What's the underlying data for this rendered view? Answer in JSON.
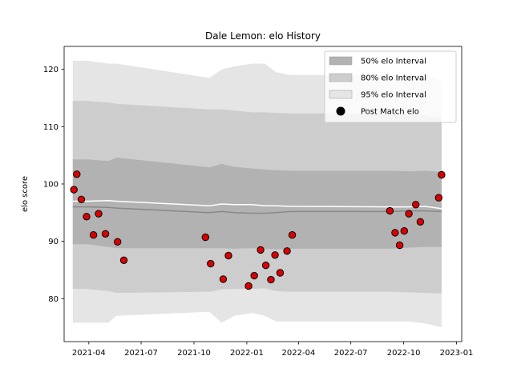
{
  "chart_data": {
    "type": "scatter",
    "title": "Dale Lemon: elo History",
    "xlabel": "",
    "ylabel": "elo score",
    "xlim": [
      "2021-02-17",
      "2023-01-10"
    ],
    "ylim": [
      72.5,
      124
    ],
    "x_ticks": [
      {
        "date": "2021-04-01",
        "label": "2021-04"
      },
      {
        "date": "2021-07-01",
        "label": "2021-07"
      },
      {
        "date": "2021-10-01",
        "label": "2021-10"
      },
      {
        "date": "2022-01-01",
        "label": "2022-01"
      },
      {
        "date": "2022-04-01",
        "label": "2022-04"
      },
      {
        "date": "2022-07-01",
        "label": "2022-07"
      },
      {
        "date": "2022-10-01",
        "label": "2022-10"
      },
      {
        "date": "2023-01-01",
        "label": "2023-01"
      }
    ],
    "y_ticks": [
      80,
      90,
      100,
      110,
      120
    ],
    "bands": {
      "x": [
        "2021-03-04",
        "2021-03-30",
        "2021-05-05",
        "2021-05-19",
        "2021-10-28",
        "2021-11-18",
        "2021-12-10",
        "2022-01-10",
        "2022-02-01",
        "2022-02-21",
        "2022-03-18",
        "2022-09-10",
        "2022-10-10",
        "2022-11-06",
        "2022-12-06"
      ],
      "median": [
        96.0,
        96.0,
        95.9,
        95.8,
        95.0,
        95.2,
        95.0,
        94.9,
        94.9,
        95.0,
        95.2,
        95.2,
        95.3,
        95.3,
        95.2
      ],
      "series": [
        {
          "name": "95% elo Interval",
          "color": "#e5e5e5",
          "upper": [
            121.5,
            121.5,
            121.0,
            121.0,
            118.5,
            120.0,
            120.5,
            121.0,
            121.0,
            119.5,
            119.0,
            119.0,
            119.0,
            119.0,
            118.0
          ],
          "lower": [
            75.8,
            75.8,
            75.8,
            77.0,
            77.7,
            75.8,
            77.0,
            77.5,
            77.0,
            76.0,
            76.0,
            76.0,
            76.0,
            75.7,
            75.0
          ]
        },
        {
          "name": "80% elo Interval",
          "color": "#cdcdcd",
          "upper": [
            114.5,
            114.5,
            114.2,
            114.0,
            113.0,
            113.0,
            112.8,
            112.5,
            112.5,
            112.4,
            112.3,
            112.3,
            112.2,
            112.0,
            111.5
          ],
          "lower": [
            81.7,
            81.7,
            81.3,
            81.0,
            81.2,
            81.6,
            81.7,
            81.7,
            81.8,
            81.3,
            81.2,
            81.2,
            81.1,
            81.0,
            80.9
          ]
        },
        {
          "name": "50% elo Interval",
          "color": "#b2b2b2",
          "upper": [
            104.3,
            104.3,
            104.0,
            104.6,
            102.9,
            103.5,
            103.0,
            102.7,
            102.5,
            102.4,
            102.3,
            102.3,
            102.2,
            102.3,
            102.1
          ],
          "lower": [
            89.5,
            89.5,
            89.0,
            88.8,
            88.8,
            88.8,
            88.7,
            88.8,
            88.7,
            88.6,
            88.7,
            88.7,
            88.9,
            89.0,
            89.0
          ]
        }
      ]
    },
    "trend_line": {
      "color": "#ffffff",
      "values": [
        97.0,
        97.0,
        97.1,
        97.0,
        96.2,
        96.5,
        96.4,
        96.4,
        96.2,
        96.2,
        96.1,
        96.0,
        96.0,
        96.1,
        95.7
      ]
    },
    "points": {
      "name": "Post Match elo",
      "color": "#dd0000",
      "edge": "#000000",
      "x": [
        "2021-03-06",
        "2021-03-11",
        "2021-03-19",
        "2021-03-28",
        "2021-04-09",
        "2021-04-18",
        "2021-04-30",
        "2021-05-21",
        "2021-06-01",
        "2021-10-21",
        "2021-10-30",
        "2021-11-21",
        "2021-11-30",
        "2022-01-04",
        "2022-01-14",
        "2022-01-25",
        "2022-02-03",
        "2022-02-12",
        "2022-02-19",
        "2022-02-28",
        "2022-03-12",
        "2022-03-21",
        "2022-09-07",
        "2022-09-16",
        "2022-09-24",
        "2022-10-02",
        "2022-10-10",
        "2022-10-22",
        "2022-10-30",
        "2022-12-01",
        "2022-12-06"
      ],
      "y": [
        99.0,
        101.7,
        97.3,
        94.3,
        91.1,
        94.8,
        91.3,
        89.9,
        86.7,
        90.7,
        86.1,
        83.4,
        87.5,
        82.2,
        84.0,
        88.5,
        85.8,
        83.3,
        87.6,
        84.5,
        88.3,
        91.1,
        95.3,
        91.5,
        89.3,
        91.8,
        94.8,
        96.4,
        93.4,
        97.6,
        101.6
      ]
    },
    "legend": {
      "placement": "top-right",
      "entries": [
        "50% elo Interval",
        "80% elo Interval",
        "95% elo Interval",
        "Post Match elo"
      ]
    },
    "grid": false
  }
}
